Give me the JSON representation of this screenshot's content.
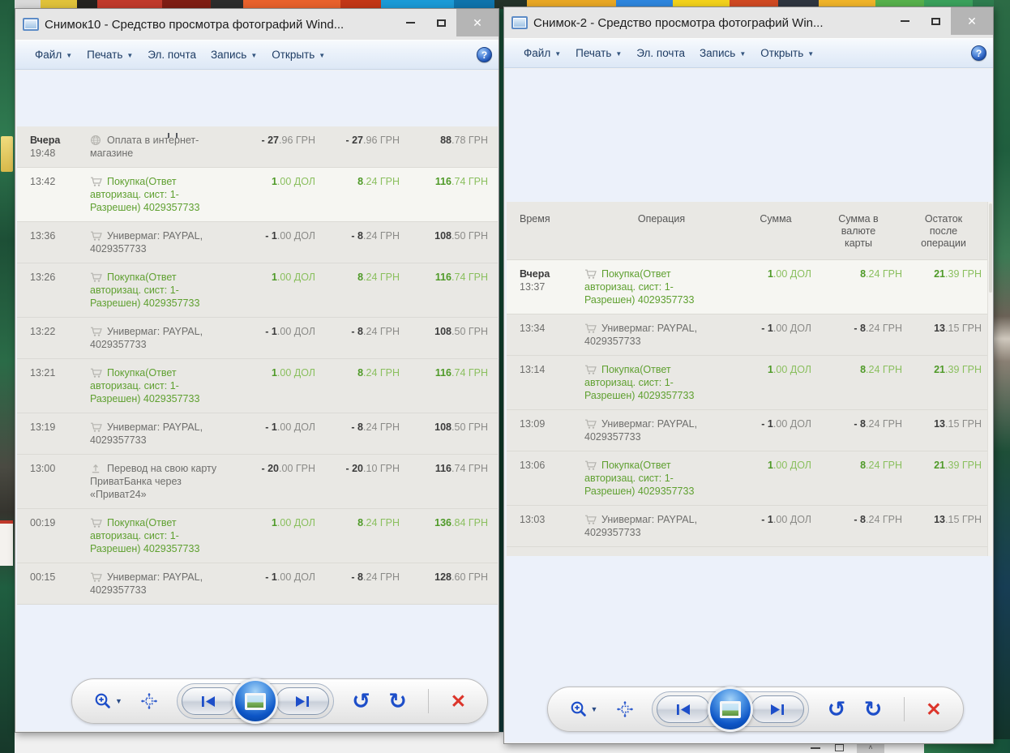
{
  "menu": {
    "file": "Файл",
    "print": "Печать",
    "email": "Эл. почта",
    "record": "Запись",
    "open": "Открыть"
  },
  "left_window": {
    "title": "Снимок10 - Средство просмотра фотографий Wind...",
    "controls": [
      "minimize-icon",
      "maximize-icon",
      "close-icon"
    ],
    "photo": {
      "rows": [
        {
          "time_label": "Вчера",
          "time": "19:48",
          "icon": "globe-icon",
          "desc": "Оплата в интернет-магазине",
          "amount": "- 27.96 ГРН",
          "amount_card": "- 27.96 ГРН",
          "balance": "88.78 ГРН",
          "tone": "neutral",
          "highlight": false
        },
        {
          "time": "13:42",
          "icon": "cart-icon",
          "desc": "Покупка(Ответ авторизац. сист: 1-Разрешен) 4029357733",
          "amount": "1.00 ДОЛ",
          "amount_card": "8.24 ГРН",
          "balance": "116.74 ГРН",
          "tone": "green",
          "highlight": true
        },
        {
          "time": "13:36",
          "icon": "cart-icon",
          "desc": "Универмаг: PAYPAL, 4029357733",
          "amount": "- 1.00 ДОЛ",
          "amount_card": "- 8.24 ГРН",
          "balance": "108.50 ГРН",
          "tone": "neutral",
          "highlight": false
        },
        {
          "time": "13:26",
          "icon": "cart-icon",
          "desc": "Покупка(Ответ авторизац. сист: 1-Разрешен) 4029357733",
          "amount": "1.00 ДОЛ",
          "amount_card": "8.24 ГРН",
          "balance": "116.74 ГРН",
          "tone": "green",
          "highlight": false
        },
        {
          "time": "13:22",
          "icon": "cart-icon",
          "desc": "Универмаг: PAYPAL, 4029357733",
          "amount": "- 1.00 ДОЛ",
          "amount_card": "- 8.24 ГРН",
          "balance": "108.50 ГРН",
          "tone": "neutral",
          "highlight": false
        },
        {
          "time": "13:21",
          "icon": "cart-icon",
          "desc": "Покупка(Ответ авторизац. сист: 1-Разрешен) 4029357733",
          "amount": "1.00 ДОЛ",
          "amount_card": "8.24 ГРН",
          "balance": "116.74 ГРН",
          "tone": "green",
          "highlight": false
        },
        {
          "time": "13:19",
          "icon": "cart-icon",
          "desc": "Универмаг: PAYPAL, 4029357733",
          "amount": "- 1.00 ДОЛ",
          "amount_card": "- 8.24 ГРН",
          "balance": "108.50 ГРН",
          "tone": "neutral",
          "highlight": false
        },
        {
          "time": "13:00",
          "icon": "transfer-icon",
          "desc": "Перевод на свою карту ПриватБанка через «Приват24»",
          "amount": "- 20.00 ГРН",
          "amount_card": "- 20.10 ГРН",
          "balance": "116.74 ГРН",
          "tone": "neutral",
          "highlight": false
        },
        {
          "time": "00:19",
          "icon": "cart-icon",
          "desc": "Покупка(Ответ авторизац. сист: 1-Разрешен) 4029357733",
          "amount": "1.00 ДОЛ",
          "amount_card": "8.24 ГРН",
          "balance": "136.84 ГРН",
          "tone": "green",
          "highlight": false
        },
        {
          "time": "00:15",
          "icon": "cart-icon",
          "desc": "Универмаг: PAYPAL, 4029357733",
          "amount": "- 1.00 ДОЛ",
          "amount_card": "- 8.24 ГРН",
          "balance": "128.60 ГРН",
          "tone": "neutral",
          "highlight": false
        }
      ]
    }
  },
  "right_window": {
    "title": "Снимок-2 - Средство просмотра фотографий Win...",
    "controls": [
      "minimize-icon",
      "maximize-icon",
      "close-icon"
    ],
    "photo": {
      "headers": [
        "Время",
        "Операция",
        "Сумма",
        "Сумма в валюте карты",
        "Остаток после операции"
      ],
      "rows": [
        {
          "time_label": "Вчера",
          "time": "13:37",
          "icon": "cart-icon",
          "desc": "Покупка(Ответ авторизац. сист: 1-Разрешен) 4029357733",
          "amount": "1.00 ДОЛ",
          "amount_card": "8.24 ГРН",
          "balance": "21.39 ГРН",
          "tone": "green",
          "highlight": true
        },
        {
          "time": "13:34",
          "icon": "cart-icon",
          "desc": "Универмаг: PAYPAL, 4029357733",
          "amount": "- 1.00 ДОЛ",
          "amount_card": "- 8.24 ГРН",
          "balance": "13.15 ГРН",
          "tone": "neutral",
          "highlight": false
        },
        {
          "time": "13:14",
          "icon": "cart-icon",
          "desc": "Покупка(Ответ авторизац. сист: 1-Разрешен) 4029357733",
          "amount": "1.00 ДОЛ",
          "amount_card": "8.24 ГРН",
          "balance": "21.39 ГРН",
          "tone": "green",
          "highlight": false
        },
        {
          "time": "13:09",
          "icon": "cart-icon",
          "desc": "Универмаг: PAYPAL, 4029357733",
          "amount": "- 1.00 ДОЛ",
          "amount_card": "- 8.24 ГРН",
          "balance": "13.15 ГРН",
          "tone": "neutral",
          "highlight": false
        },
        {
          "time": "13:06",
          "icon": "cart-icon",
          "desc": "Покупка(Ответ авторизац. сист: 1-Разрешен) 4029357733",
          "amount": "1.00 ДОЛ",
          "amount_card": "8.24 ГРН",
          "balance": "21.39 ГРН",
          "tone": "green",
          "highlight": false
        },
        {
          "time": "13:03",
          "icon": "cart-icon",
          "desc": "Универмаг: PAYPAL, 4029357733",
          "amount": "- 1.00 ДОЛ",
          "amount_card": "- 8.24 ГРН",
          "balance": "13.15 ГРН",
          "tone": "neutral",
          "highlight": false
        }
      ]
    }
  },
  "toolbar": {
    "icons": [
      "zoom-icon",
      "fit-to-window-icon",
      "previous-icon",
      "slideshow-icon",
      "next-icon",
      "rotate-counterclockwise-icon",
      "rotate-clockwise-icon",
      "delete-icon"
    ]
  },
  "colors": {
    "green_text": "#5fa030",
    "green_bold": "#4f9a28",
    "text_dark": "#3c3c3c",
    "viewer_bg": "#ecf1fa",
    "photo_bg": "#e9e8e4",
    "accent_blue": "#1d4ec9",
    "delete_red": "#dc352b"
  }
}
